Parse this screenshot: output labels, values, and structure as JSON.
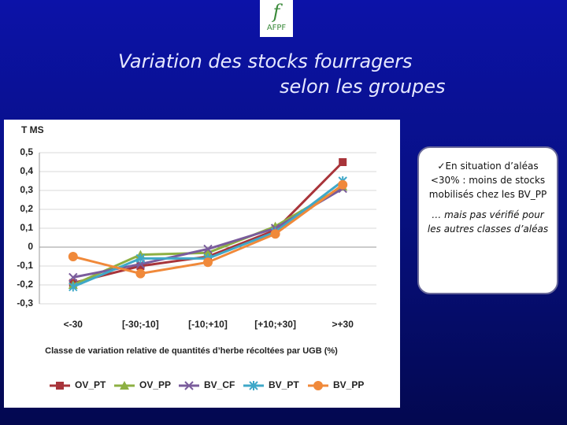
{
  "header": {
    "logo_letter": "f",
    "logo": "AFPF",
    "title": [
      "Variation des stocks fourragers",
      "selon les groupes"
    ]
  },
  "chart_data": {
    "type": "line",
    "ylabel": "T MS",
    "xlabel": "Classe de variation relative de quantités d’herbe récoltées par UGB (%)",
    "categories": [
      "<-30",
      "[-30;-10]",
      "[-10;+10]",
      "[+10;+30]",
      ">+30"
    ],
    "series": [
      {
        "name": "OV_PT",
        "color": "#a8343a",
        "marker": "square",
        "values": [
          -0.19,
          -0.1,
          -0.05,
          0.09,
          0.45
        ]
      },
      {
        "name": "OV_PP",
        "color": "#8db043",
        "marker": "triangle",
        "values": [
          -0.2,
          -0.04,
          -0.03,
          0.11,
          0.32
        ]
      },
      {
        "name": "BV_CF",
        "color": "#7a5c9c",
        "marker": "x",
        "values": [
          -0.16,
          -0.09,
          -0.01,
          0.1,
          0.31
        ]
      },
      {
        "name": "BV_PT",
        "color": "#3fa8c8",
        "marker": "star",
        "values": [
          -0.21,
          -0.06,
          -0.06,
          0.08,
          0.35
        ]
      },
      {
        "name": "BV_PP",
        "color": "#f0893a",
        "marker": "circle",
        "values": [
          -0.05,
          -0.14,
          -0.08,
          0.07,
          0.33
        ]
      }
    ],
    "ylim": [
      -0.3,
      0.5
    ],
    "yticks": [
      {
        "value": 0.5,
        "label": "0,5"
      },
      {
        "value": 0.4,
        "label": "0,4"
      },
      {
        "value": 0.3,
        "label": "0,3"
      },
      {
        "value": 0.2,
        "label": "0,2"
      },
      {
        "value": 0.1,
        "label": "0,1"
      },
      0,
      {
        "value": -0.1,
        "label": "-0,1"
      },
      {
        "value": -0.2,
        "label": "-0,2"
      },
      {
        "value": -0.3,
        "label": "-0,3"
      }
    ],
    "grid": true
  },
  "callout": [
    "✓En situation d’aléas <30% : moins de stocks mobilisés chez les BV_PP",
    "… mais pas vérifié pour les autres classes d’aléas"
  ]
}
